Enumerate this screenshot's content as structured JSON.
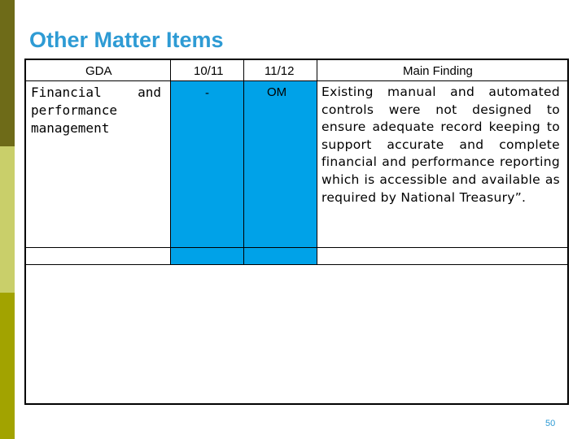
{
  "slide": {
    "title": "Other Matter Items",
    "page_number": "50"
  },
  "table": {
    "headers": {
      "gda": "GDA",
      "y1011": "10/11",
      "y1112": "11/12",
      "finding": "Main Finding"
    },
    "rows": [
      {
        "gda": "Financial and performance management",
        "y1011": "-",
        "y1112": "OM",
        "finding": "Existing manual and automated controls were not designed to ensure adequate record keeping to support accurate and complete financial and performance reporting which is accessible and available as required by National Treasury”."
      }
    ]
  },
  "colors": {
    "title": "#2e9bd4",
    "highlight_columns": "#00a2e8",
    "sidebar_dark": "#6e6b18",
    "sidebar_light": "#c9cf6a",
    "sidebar_mid": "#a2a300"
  }
}
